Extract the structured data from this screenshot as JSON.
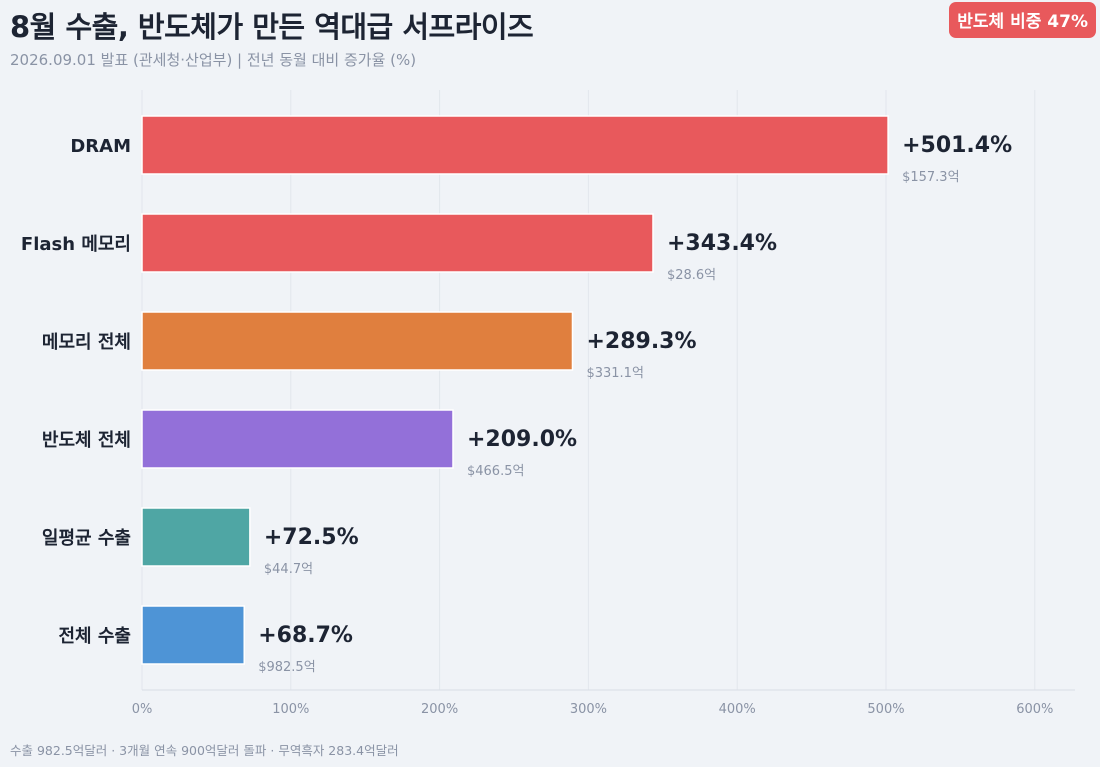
{
  "header": {
    "title": "8월 수출, 반도체가 만든 역대급 서프라이즈",
    "subtitle": "2026.09.01 발표 (관세청·산업부)  |  전년 동월 대비 증가율 (%)",
    "badge": "반도체 비중 47%"
  },
  "footer": {
    "note": "수출 982.5억달러 · 3개월 연속 900억달러 돌파 · 무역흑자 283.4억달러"
  },
  "chart_data": {
    "type": "bar",
    "orientation": "horizontal",
    "categories": [
      "DRAM",
      "Flash 메모리",
      "메모리 전체",
      "반도체 전체",
      "일평균 수출",
      "전체 수출"
    ],
    "values": [
      501.4,
      343.4,
      289.3,
      209.0,
      72.5,
      68.7
    ],
    "value_labels": [
      "+501.4%",
      "+343.4%",
      "+289.3%",
      "+209.0%",
      "+72.5%",
      "+68.7%"
    ],
    "amount_labels": [
      "$157.3억",
      "$28.6억",
      "$331.1억",
      "$466.5억",
      "$44.7억",
      "$982.5억"
    ],
    "colors": [
      "#e8595c",
      "#e8595c",
      "#e07f3e",
      "#9370d9",
      "#4fa6a4",
      "#4e94d6"
    ],
    "xlim": [
      0,
      630
    ],
    "xticks": [
      0,
      100,
      200,
      300,
      400,
      500,
      600
    ],
    "xtick_labels": [
      "0%",
      "100%",
      "200%",
      "300%",
      "400%",
      "500%",
      "600%"
    ],
    "grid": "vertical",
    "legend": "none"
  }
}
